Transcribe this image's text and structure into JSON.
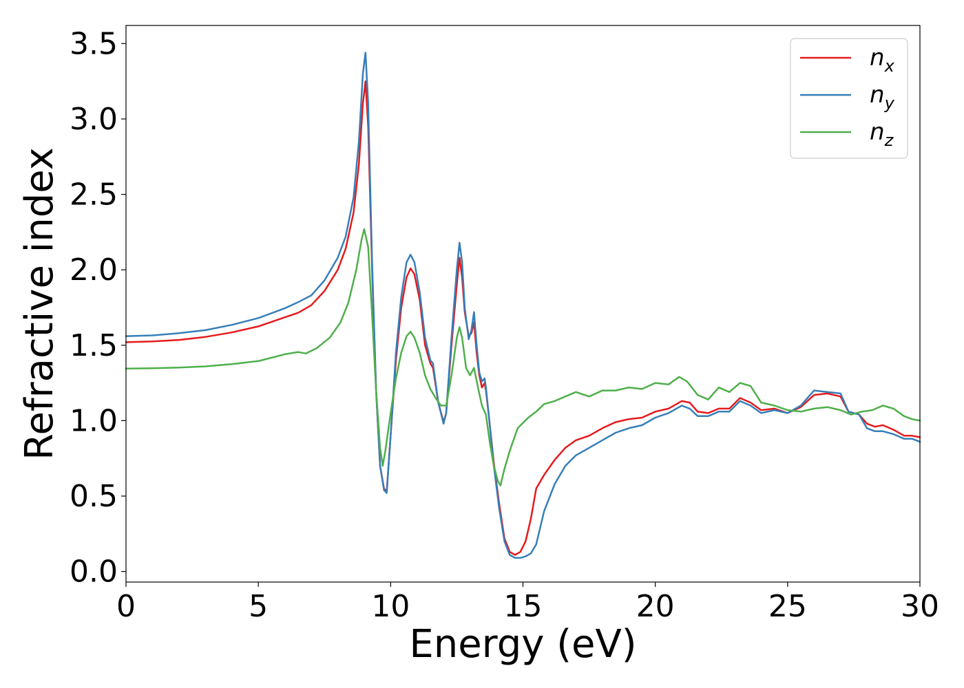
{
  "chart_data": {
    "type": "line",
    "title": "",
    "xlabel": "Energy (eV)",
    "ylabel": "Refractive index",
    "xlim": [
      0,
      30
    ],
    "ylim": [
      -0.07,
      3.62
    ],
    "xticks": [
      0,
      5,
      10,
      15,
      20,
      25,
      30
    ],
    "xtick_labels": [
      "0",
      "5",
      "10",
      "15",
      "20",
      "25",
      "30"
    ],
    "yticks": [
      0.0,
      0.5,
      1.0,
      1.5,
      2.0,
      2.5,
      3.0,
      3.5
    ],
    "ytick_labels": [
      "0.0",
      "0.5",
      "1.0",
      "1.5",
      "2.0",
      "2.5",
      "3.0",
      "3.5"
    ],
    "grid": false,
    "legend_position": "top-right",
    "series": [
      {
        "name": "n_x",
        "label_base": "n",
        "label_sub": "x",
        "color": "#e41a1c",
        "points": [
          [
            0,
            1.52
          ],
          [
            1,
            1.525
          ],
          [
            2,
            1.535
          ],
          [
            3,
            1.555
          ],
          [
            4,
            1.585
          ],
          [
            5,
            1.625
          ],
          [
            6,
            1.685
          ],
          [
            6.5,
            1.715
          ],
          [
            7,
            1.765
          ],
          [
            7.5,
            1.86
          ],
          [
            8,
            2.0
          ],
          [
            8.3,
            2.14
          ],
          [
            8.6,
            2.38
          ],
          [
            8.8,
            2.7
          ],
          [
            8.95,
            3.1
          ],
          [
            9.05,
            3.25
          ],
          [
            9.15,
            2.95
          ],
          [
            9.3,
            2.0
          ],
          [
            9.45,
            1.2
          ],
          [
            9.6,
            0.7
          ],
          [
            9.75,
            0.55
          ],
          [
            9.85,
            0.53
          ],
          [
            10.0,
            0.9
          ],
          [
            10.2,
            1.4
          ],
          [
            10.4,
            1.75
          ],
          [
            10.6,
            1.95
          ],
          [
            10.75,
            2.01
          ],
          [
            10.9,
            1.97
          ],
          [
            11.1,
            1.8
          ],
          [
            11.3,
            1.5
          ],
          [
            11.5,
            1.38
          ],
          [
            11.6,
            1.35
          ],
          [
            11.8,
            1.12
          ],
          [
            12.0,
            0.99
          ],
          [
            12.1,
            1.05
          ],
          [
            12.3,
            1.5
          ],
          [
            12.5,
            1.9
          ],
          [
            12.6,
            2.08
          ],
          [
            12.7,
            1.95
          ],
          [
            12.8,
            1.72
          ],
          [
            12.95,
            1.56
          ],
          [
            13.05,
            1.58
          ],
          [
            13.15,
            1.65
          ],
          [
            13.25,
            1.45
          ],
          [
            13.35,
            1.3
          ],
          [
            13.45,
            1.22
          ],
          [
            13.55,
            1.25
          ],
          [
            13.6,
            1.2
          ],
          [
            13.7,
            1.05
          ],
          [
            13.9,
            0.72
          ],
          [
            14.1,
            0.45
          ],
          [
            14.3,
            0.22
          ],
          [
            14.5,
            0.13
          ],
          [
            14.7,
            0.11
          ],
          [
            14.9,
            0.13
          ],
          [
            15.1,
            0.2
          ],
          [
            15.3,
            0.35
          ],
          [
            15.5,
            0.55
          ],
          [
            15.8,
            0.64
          ],
          [
            16.2,
            0.74
          ],
          [
            16.6,
            0.82
          ],
          [
            17.0,
            0.87
          ],
          [
            17.5,
            0.9
          ],
          [
            18.0,
            0.95
          ],
          [
            18.5,
            0.99
          ],
          [
            19.0,
            1.01
          ],
          [
            19.5,
            1.02
          ],
          [
            20.0,
            1.06
          ],
          [
            20.5,
            1.08
          ],
          [
            21.0,
            1.13
          ],
          [
            21.3,
            1.12
          ],
          [
            21.6,
            1.06
          ],
          [
            22.0,
            1.05
          ],
          [
            22.4,
            1.08
          ],
          [
            22.8,
            1.08
          ],
          [
            23.2,
            1.15
          ],
          [
            23.6,
            1.12
          ],
          [
            24.0,
            1.07
          ],
          [
            24.5,
            1.08
          ],
          [
            25.0,
            1.05
          ],
          [
            25.5,
            1.09
          ],
          [
            26.0,
            1.17
          ],
          [
            26.5,
            1.18
          ],
          [
            27.0,
            1.16
          ],
          [
            27.3,
            1.06
          ],
          [
            27.7,
            1.04
          ],
          [
            28.0,
            0.98
          ],
          [
            28.3,
            0.96
          ],
          [
            28.6,
            0.97
          ],
          [
            29.0,
            0.94
          ],
          [
            29.4,
            0.9
          ],
          [
            29.7,
            0.9
          ],
          [
            30.0,
            0.89
          ]
        ]
      },
      {
        "name": "n_y",
        "label_base": "n",
        "label_sub": "y",
        "color": "#377eb8",
        "points": [
          [
            0,
            1.56
          ],
          [
            1,
            1.565
          ],
          [
            2,
            1.58
          ],
          [
            3,
            1.6
          ],
          [
            4,
            1.635
          ],
          [
            5,
            1.68
          ],
          [
            6,
            1.745
          ],
          [
            6.5,
            1.785
          ],
          [
            7,
            1.83
          ],
          [
            7.5,
            1.93
          ],
          [
            8,
            2.08
          ],
          [
            8.3,
            2.22
          ],
          [
            8.6,
            2.48
          ],
          [
            8.8,
            2.85
          ],
          [
            8.95,
            3.3
          ],
          [
            9.05,
            3.44
          ],
          [
            9.15,
            3.1
          ],
          [
            9.3,
            2.05
          ],
          [
            9.45,
            1.2
          ],
          [
            9.6,
            0.7
          ],
          [
            9.75,
            0.54
          ],
          [
            9.85,
            0.52
          ],
          [
            10.0,
            0.9
          ],
          [
            10.2,
            1.45
          ],
          [
            10.4,
            1.82
          ],
          [
            10.6,
            2.05
          ],
          [
            10.75,
            2.1
          ],
          [
            10.9,
            2.05
          ],
          [
            11.1,
            1.85
          ],
          [
            11.3,
            1.55
          ],
          [
            11.5,
            1.4
          ],
          [
            11.6,
            1.38
          ],
          [
            11.8,
            1.12
          ],
          [
            12.0,
            0.98
          ],
          [
            12.1,
            1.05
          ],
          [
            12.3,
            1.55
          ],
          [
            12.5,
            2.0
          ],
          [
            12.6,
            2.18
          ],
          [
            12.7,
            2.05
          ],
          [
            12.8,
            1.75
          ],
          [
            12.95,
            1.54
          ],
          [
            13.05,
            1.6
          ],
          [
            13.15,
            1.72
          ],
          [
            13.25,
            1.5
          ],
          [
            13.35,
            1.32
          ],
          [
            13.45,
            1.26
          ],
          [
            13.55,
            1.28
          ],
          [
            13.6,
            1.22
          ],
          [
            13.7,
            1.05
          ],
          [
            13.9,
            0.7
          ],
          [
            14.1,
            0.42
          ],
          [
            14.3,
            0.2
          ],
          [
            14.5,
            0.11
          ],
          [
            14.7,
            0.09
          ],
          [
            14.9,
            0.09
          ],
          [
            15.1,
            0.1
          ],
          [
            15.3,
            0.12
          ],
          [
            15.5,
            0.18
          ],
          [
            15.8,
            0.4
          ],
          [
            16.2,
            0.58
          ],
          [
            16.6,
            0.7
          ],
          [
            17.0,
            0.77
          ],
          [
            17.5,
            0.82
          ],
          [
            18.0,
            0.87
          ],
          [
            18.5,
            0.92
          ],
          [
            19.0,
            0.95
          ],
          [
            19.5,
            0.97
          ],
          [
            20.0,
            1.02
          ],
          [
            20.5,
            1.05
          ],
          [
            21.0,
            1.1
          ],
          [
            21.3,
            1.08
          ],
          [
            21.6,
            1.03
          ],
          [
            22.0,
            1.03
          ],
          [
            22.4,
            1.06
          ],
          [
            22.8,
            1.06
          ],
          [
            23.2,
            1.13
          ],
          [
            23.6,
            1.1
          ],
          [
            24.0,
            1.05
          ],
          [
            24.5,
            1.07
          ],
          [
            25.0,
            1.05
          ],
          [
            25.5,
            1.1
          ],
          [
            26.0,
            1.2
          ],
          [
            26.5,
            1.19
          ],
          [
            27.0,
            1.18
          ],
          [
            27.3,
            1.06
          ],
          [
            27.7,
            1.04
          ],
          [
            28.0,
            0.95
          ],
          [
            28.3,
            0.93
          ],
          [
            28.6,
            0.93
          ],
          [
            29.0,
            0.91
          ],
          [
            29.4,
            0.88
          ],
          [
            29.7,
            0.88
          ],
          [
            30.0,
            0.86
          ]
        ]
      },
      {
        "name": "n_z",
        "label_base": "n",
        "label_sub": "z",
        "color": "#4daf4a",
        "points": [
          [
            0,
            1.345
          ],
          [
            1,
            1.347
          ],
          [
            2,
            1.352
          ],
          [
            3,
            1.36
          ],
          [
            4,
            1.375
          ],
          [
            5,
            1.395
          ],
          [
            6,
            1.44
          ],
          [
            6.5,
            1.455
          ],
          [
            6.8,
            1.445
          ],
          [
            7.2,
            1.48
          ],
          [
            7.7,
            1.55
          ],
          [
            8.1,
            1.65
          ],
          [
            8.4,
            1.78
          ],
          [
            8.7,
            2.0
          ],
          [
            8.9,
            2.2
          ],
          [
            9.0,
            2.27
          ],
          [
            9.15,
            2.15
          ],
          [
            9.3,
            1.7
          ],
          [
            9.45,
            1.2
          ],
          [
            9.6,
            0.82
          ],
          [
            9.7,
            0.7
          ],
          [
            9.8,
            0.8
          ],
          [
            10.0,
            1.05
          ],
          [
            10.2,
            1.28
          ],
          [
            10.4,
            1.45
          ],
          [
            10.6,
            1.56
          ],
          [
            10.75,
            1.59
          ],
          [
            10.9,
            1.55
          ],
          [
            11.1,
            1.45
          ],
          [
            11.3,
            1.3
          ],
          [
            11.5,
            1.21
          ],
          [
            11.7,
            1.15
          ],
          [
            11.9,
            1.1
          ],
          [
            12.1,
            1.1
          ],
          [
            12.3,
            1.3
          ],
          [
            12.5,
            1.55
          ],
          [
            12.6,
            1.62
          ],
          [
            12.7,
            1.55
          ],
          [
            12.85,
            1.35
          ],
          [
            13.0,
            1.3
          ],
          [
            13.15,
            1.35
          ],
          [
            13.3,
            1.22
          ],
          [
            13.45,
            1.1
          ],
          [
            13.6,
            1.04
          ],
          [
            13.75,
            0.85
          ],
          [
            13.9,
            0.7
          ],
          [
            14.05,
            0.6
          ],
          [
            14.15,
            0.57
          ],
          [
            14.3,
            0.68
          ],
          [
            14.5,
            0.8
          ],
          [
            14.8,
            0.95
          ],
          [
            15.2,
            1.02
          ],
          [
            15.5,
            1.06
          ],
          [
            15.8,
            1.11
          ],
          [
            16.2,
            1.13
          ],
          [
            16.6,
            1.16
          ],
          [
            17.0,
            1.19
          ],
          [
            17.5,
            1.16
          ],
          [
            18.0,
            1.2
          ],
          [
            18.5,
            1.2
          ],
          [
            19.0,
            1.22
          ],
          [
            19.5,
            1.21
          ],
          [
            20.0,
            1.25
          ],
          [
            20.5,
            1.24
          ],
          [
            20.9,
            1.29
          ],
          [
            21.2,
            1.26
          ],
          [
            21.6,
            1.17
          ],
          [
            22.0,
            1.14
          ],
          [
            22.4,
            1.22
          ],
          [
            22.8,
            1.19
          ],
          [
            23.2,
            1.25
          ],
          [
            23.6,
            1.23
          ],
          [
            24.0,
            1.12
          ],
          [
            24.5,
            1.1
          ],
          [
            25.0,
            1.07
          ],
          [
            25.5,
            1.06
          ],
          [
            26.0,
            1.08
          ],
          [
            26.5,
            1.09
          ],
          [
            27.0,
            1.07
          ],
          [
            27.4,
            1.04
          ],
          [
            27.8,
            1.06
          ],
          [
            28.2,
            1.07
          ],
          [
            28.6,
            1.1
          ],
          [
            29.0,
            1.08
          ],
          [
            29.4,
            1.03
          ],
          [
            29.7,
            1.01
          ],
          [
            30.0,
            1.0
          ]
        ]
      }
    ]
  }
}
